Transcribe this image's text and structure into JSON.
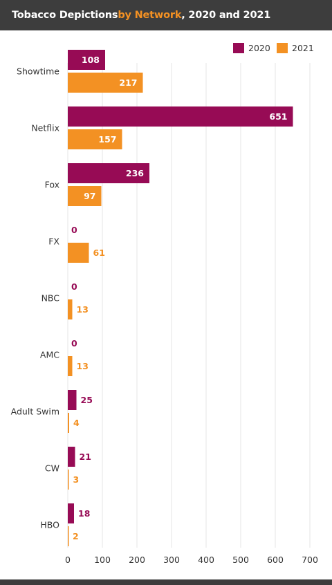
{
  "header": {
    "title_part1": "Tobacco Depictions ",
    "title_accent": "by Network",
    "title_part2": ", 2020 and 2021"
  },
  "colors": {
    "series_2020": "#970b55",
    "series_2021": "#f39123",
    "header_bg": "#3d3d3d",
    "accent": "#f39123",
    "grid": "#e5e5e5",
    "label_text": "#333333"
  },
  "chart_data": {
    "type": "bar",
    "orientation": "horizontal",
    "title": "Tobacco Depictions by Network, 2020 and 2021",
    "categories": [
      "Showtime",
      "Netflix",
      "Fox",
      "FX",
      "NBC",
      "AMC",
      "Adult Swim",
      "CW",
      "HBO"
    ],
    "series": [
      {
        "name": "2020",
        "values": [
          108,
          651,
          236,
          0,
          0,
          0,
          25,
          21,
          18
        ]
      },
      {
        "name": "2021",
        "values": [
          217,
          157,
          97,
          61,
          13,
          13,
          4,
          3,
          2
        ]
      }
    ],
    "x_ticks": [
      "0",
      "100",
      "200",
      "300",
      "400",
      "500",
      "600",
      "700"
    ],
    "xlim": [
      0,
      700
    ],
    "grid": "vertical",
    "legend_position": "top-right"
  }
}
